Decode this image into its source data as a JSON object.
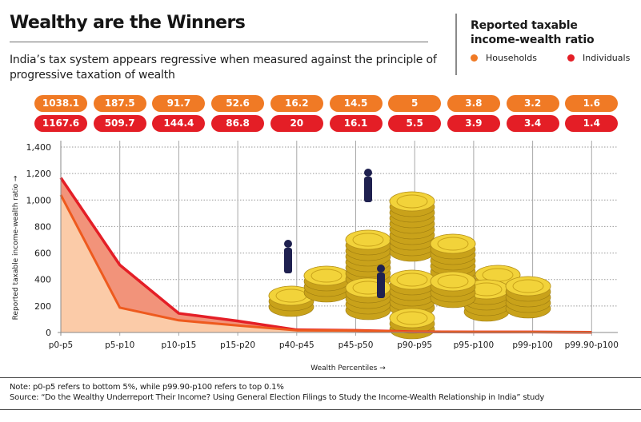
{
  "header": {
    "title": "Wealthy are the Winners",
    "subtitle": "India’s tax system appears regressive when measured against the principle of progressive taxation of wealth"
  },
  "legend": {
    "title_line1": "Reported taxable",
    "title_line2": "income-wealth ratio",
    "items": [
      {
        "label": "Households",
        "color": "#F07A25"
      },
      {
        "label": "Individuals",
        "color": "#E41E26"
      }
    ]
  },
  "colors": {
    "households": "#F07A25",
    "individuals": "#E41E26",
    "households_fill": "#FBCBA8",
    "individuals_fill": "#F2937A",
    "grid": "#9a9a9a",
    "axis": "#8a8a8a"
  },
  "chart_data": {
    "type": "area",
    "title": "Wealthy are the Winners",
    "xlabel": "Wealth Percentiles →",
    "ylabel": "Reported taxable income-wealth ratio →",
    "categories": [
      "p0-p5",
      "p5-p10",
      "p10-p15",
      "p15-p20",
      "p40-p45",
      "p45-p50",
      "p90-p95",
      "p95-p100",
      "p99-p100",
      "p99.90-p100"
    ],
    "series": [
      {
        "name": "Households",
        "values": [
          1038.1,
          187.5,
          91.7,
          52.6,
          16.2,
          14.5,
          5,
          3.8,
          3.2,
          1.6
        ]
      },
      {
        "name": "Individuals",
        "values": [
          1167.6,
          509.7,
          144.4,
          86.8,
          20,
          16.1,
          5.5,
          3.9,
          3.4,
          1.4
        ]
      }
    ],
    "ylim": [
      0,
      1400
    ],
    "yticks": [
      0,
      200,
      400,
      600,
      800,
      1000,
      1200,
      1400
    ],
    "ytick_labels": [
      "0",
      "200",
      "400",
      "600",
      "800",
      "1,000",
      "1,200",
      "1,400"
    ],
    "grid": true,
    "legend_position": "top-right"
  },
  "footer": {
    "note": "Note: p0-p5 refers to bottom 5%, while p99.90-p100 refers to top 0.1%",
    "source": "Source: “Do the Wealthy Underreport Their Income? Using General Election Filings to Study the Income-Wealth Relationship in India” study"
  }
}
